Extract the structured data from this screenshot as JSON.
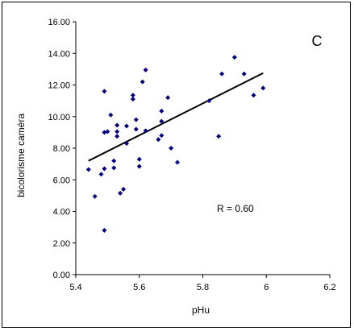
{
  "chart_data": {
    "type": "scatter",
    "title": "",
    "panel_label": "C",
    "xlabel": "pHu",
    "ylabel": "bicolorisme caméra",
    "xlim": [
      5.4,
      6.2
    ],
    "ylim": [
      0,
      16
    ],
    "x_ticks": [
      "5.4",
      "5.6",
      "5.8",
      "6",
      "6.2"
    ],
    "x_tick_values": [
      5.4,
      5.6,
      5.8,
      6.0,
      6.2
    ],
    "y_ticks": [
      "0.00",
      "2.00",
      "4.00",
      "6.00",
      "8.00",
      "10.00",
      "12.00",
      "14.00",
      "16.00"
    ],
    "y_tick_values": [
      0,
      2,
      4,
      6,
      8,
      10,
      12,
      14,
      16
    ],
    "grid": false,
    "legend": "none",
    "annotation": "R = 0.60",
    "marker_color": "#000080",
    "line_color": "#000000",
    "points": [
      {
        "x": 5.44,
        "y": 6.65
      },
      {
        "x": 5.46,
        "y": 4.95
      },
      {
        "x": 5.48,
        "y": 6.35
      },
      {
        "x": 5.49,
        "y": 6.7
      },
      {
        "x": 5.49,
        "y": 2.8
      },
      {
        "x": 5.49,
        "y": 11.6
      },
      {
        "x": 5.49,
        "y": 9.0
      },
      {
        "x": 5.5,
        "y": 9.05
      },
      {
        "x": 5.51,
        "y": 10.1
      },
      {
        "x": 5.52,
        "y": 7.2
      },
      {
        "x": 5.52,
        "y": 6.75
      },
      {
        "x": 5.53,
        "y": 9.05
      },
      {
        "x": 5.53,
        "y": 9.45
      },
      {
        "x": 5.53,
        "y": 8.75
      },
      {
        "x": 5.54,
        "y": 5.15
      },
      {
        "x": 5.55,
        "y": 5.4
      },
      {
        "x": 5.56,
        "y": 8.3
      },
      {
        "x": 5.56,
        "y": 9.4
      },
      {
        "x": 5.58,
        "y": 11.1
      },
      {
        "x": 5.58,
        "y": 11.35
      },
      {
        "x": 5.59,
        "y": 9.8
      },
      {
        "x": 5.59,
        "y": 9.2
      },
      {
        "x": 5.6,
        "y": 7.3
      },
      {
        "x": 5.6,
        "y": 6.85
      },
      {
        "x": 5.61,
        "y": 12.2
      },
      {
        "x": 5.62,
        "y": 12.95
      },
      {
        "x": 5.62,
        "y": 9.1
      },
      {
        "x": 5.66,
        "y": 8.55
      },
      {
        "x": 5.67,
        "y": 8.8
      },
      {
        "x": 5.67,
        "y": 9.7
      },
      {
        "x": 5.67,
        "y": 10.35
      },
      {
        "x": 5.69,
        "y": 11.2
      },
      {
        "x": 5.7,
        "y": 8.0
      },
      {
        "x": 5.72,
        "y": 7.1
      },
      {
        "x": 5.82,
        "y": 11.0
      },
      {
        "x": 5.85,
        "y": 8.75
      },
      {
        "x": 5.86,
        "y": 12.7
      },
      {
        "x": 5.9,
        "y": 13.75
      },
      {
        "x": 5.93,
        "y": 12.7
      },
      {
        "x": 5.96,
        "y": 11.35
      },
      {
        "x": 5.99,
        "y": 11.8
      }
    ],
    "trendline": {
      "x": [
        5.44,
        5.99
      ],
      "y": [
        7.2,
        12.75
      ]
    }
  }
}
